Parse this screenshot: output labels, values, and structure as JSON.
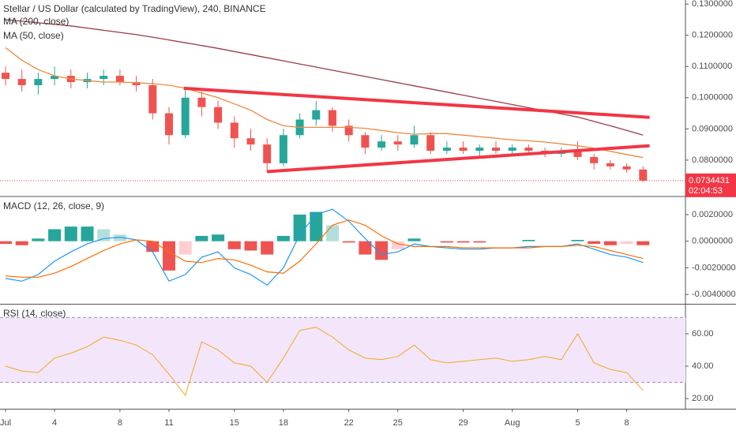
{
  "chart_data": [
    {
      "type": "candlestick",
      "title": "Stellar / US Dollar (calculated by TradingView), 240, BINANCE",
      "categories": [
        "Jul",
        null,
        null,
        "4",
        null,
        null,
        null,
        "8",
        null,
        null,
        "11",
        null,
        null,
        null,
        "15",
        null,
        null,
        "18",
        null,
        null,
        null,
        "22",
        null,
        null,
        "25",
        null,
        null,
        null,
        "29",
        null,
        null,
        "Aug",
        null,
        null,
        null,
        "5",
        null,
        null,
        "8",
        null
      ],
      "open": [
        0.108,
        0.106,
        0.104,
        0.106,
        0.107,
        0.105,
        0.106,
        0.107,
        0.105,
        0.104,
        0.095,
        0.088,
        0.1,
        0.097,
        0.092,
        0.087,
        0.085,
        0.079,
        0.088,
        0.093,
        0.096,
        0.091,
        0.088,
        0.084,
        0.086,
        0.085,
        0.088,
        0.083,
        0.084,
        0.083,
        0.084,
        0.083,
        0.084,
        0.083,
        0.082,
        0.083,
        0.081,
        0.079,
        0.078,
        0.077
      ],
      "high": [
        0.11,
        0.109,
        0.108,
        0.11,
        0.109,
        0.108,
        0.109,
        0.109,
        0.107,
        0.106,
        0.097,
        0.103,
        0.102,
        0.099,
        0.094,
        0.09,
        0.087,
        0.09,
        0.095,
        0.099,
        0.097,
        0.093,
        0.089,
        0.088,
        0.088,
        0.091,
        0.089,
        0.086,
        0.086,
        0.085,
        0.086,
        0.085,
        0.085,
        0.084,
        0.084,
        0.086,
        0.082,
        0.08,
        0.079,
        0.078
      ],
      "low": [
        0.104,
        0.102,
        0.101,
        0.104,
        0.103,
        0.103,
        0.104,
        0.104,
        0.102,
        0.093,
        0.085,
        0.087,
        0.094,
        0.09,
        0.084,
        0.083,
        0.076,
        0.078,
        0.087,
        0.091,
        0.089,
        0.086,
        0.082,
        0.083,
        0.083,
        0.084,
        0.082,
        0.082,
        0.082,
        0.081,
        0.082,
        0.082,
        0.082,
        0.081,
        0.081,
        0.08,
        0.077,
        0.077,
        0.076,
        0.073
      ],
      "close": [
        0.106,
        0.104,
        0.106,
        0.107,
        0.105,
        0.106,
        0.107,
        0.105,
        0.104,
        0.095,
        0.088,
        0.1,
        0.097,
        0.092,
        0.087,
        0.085,
        0.079,
        0.088,
        0.093,
        0.096,
        0.091,
        0.088,
        0.084,
        0.086,
        0.085,
        0.088,
        0.083,
        0.084,
        0.083,
        0.084,
        0.083,
        0.084,
        0.083,
        0.082,
        0.083,
        0.081,
        0.079,
        0.078,
        0.077,
        0.0734431
      ],
      "up_color": "#26a69a",
      "down_color": "#ef5350",
      "series": [
        {
          "name": "MA (200, close)",
          "color": "#9b3b4a",
          "values": [
            0.125,
            0.1245,
            0.124,
            0.1235,
            0.123,
            0.1223,
            0.1216,
            0.1209,
            0.1202,
            0.1194,
            0.1185,
            0.1176,
            0.1167,
            0.1158,
            0.1148,
            0.1138,
            0.1128,
            0.1118,
            0.1108,
            0.1098,
            0.1088,
            0.1078,
            0.1068,
            0.1058,
            0.1048,
            0.1038,
            0.1028,
            0.1018,
            0.1008,
            0.0998,
            0.0988,
            0.0978,
            0.0968,
            0.0958,
            0.0948,
            0.0938,
            0.0924,
            0.091,
            0.0895,
            0.088
          ]
        },
        {
          "name": "MA (50, close)",
          "color": "#f0883e",
          "values": [
            0.116,
            0.112,
            0.109,
            0.107,
            0.106,
            0.1055,
            0.105,
            0.105,
            0.1048,
            0.1045,
            0.104,
            0.103,
            0.1015,
            0.1,
            0.098,
            0.096,
            0.093,
            0.091,
            0.0905,
            0.0905,
            0.0905,
            0.0905,
            0.0902,
            0.0895,
            0.0888,
            0.0883,
            0.0885,
            0.0885,
            0.088,
            0.0875,
            0.087,
            0.0865,
            0.0862,
            0.0858,
            0.0852,
            0.0846,
            0.0838,
            0.0828,
            0.0818,
            0.0808
          ]
        }
      ],
      "trendlines": [
        {
          "color": "#f23645",
          "x": [
            10.9,
            39.4
          ],
          "y": [
            0.103,
            0.0937
          ]
        },
        {
          "color": "#f23645",
          "x": [
            16.0,
            39.4
          ],
          "y": [
            0.0763,
            0.0846
          ]
        }
      ],
      "countdown": "02:04:53",
      "last_color": "#f23645",
      "ylim": [
        0.0686,
        0.1313
      ],
      "yticks": [
        {
          "value": 0.13,
          "label": "0.1300000"
        },
        {
          "value": 0.12,
          "label": "0.1200000"
        },
        {
          "value": 0.11,
          "label": "0.1100000"
        },
        {
          "value": 0.1,
          "label": "0.1000000"
        },
        {
          "value": 0.09,
          "label": "0.0900000"
        },
        {
          "value": 0.08,
          "label": "0.0800000"
        }
      ]
    },
    {
      "type": "macd",
      "title": "MACD (12, 26, close, 9)",
      "histogram": {
        "values": [
          -0.0002,
          -0.0003,
          0.0002,
          0.0009,
          0.0011,
          0.0011,
          0.0009,
          0.0005,
          0,
          -0.0008,
          -0.0022,
          -0.001,
          0.0004,
          0.0005,
          -0.0006,
          -0.0007,
          -0.001,
          0.0004,
          0.002,
          0.0022,
          0.0012,
          -0.0001,
          -0.001,
          -0.0014,
          -0.0006,
          0.0002,
          0,
          -0.0001,
          -0.0001,
          -0.0001,
          0,
          0,
          0.0001,
          0,
          0,
          0.0001,
          -0.0002,
          -0.0003,
          -0.0002,
          -0.0003
        ],
        "colors": [
          "#26a69a",
          "#b2dfdb",
          "#ef5350",
          "#ffcdd2"
        ]
      },
      "lines": [
        {
          "color": "#2196f3",
          "values": [
            -0.0028,
            -0.003,
            -0.0025,
            -0.0015,
            -0.0008,
            -0.0002,
            0.0002,
            0.0003,
            0.0001,
            -0.0008,
            -0.003,
            -0.0025,
            -0.0012,
            -0.0008,
            -0.002,
            -0.0025,
            -0.0033,
            -0.002,
            0.0005,
            0.002,
            0.0024,
            0.0015,
            0.0002,
            -0.001,
            -0.0008,
            -0.0002,
            -0.0004,
            -0.0005,
            -0.0006,
            -0.0006,
            -0.0005,
            -0.0005,
            -0.0004,
            -0.0004,
            -0.0004,
            -0.0002,
            -0.0006,
            -0.001,
            -0.0012,
            -0.0016
          ]
        },
        {
          "color": "#ff6d00",
          "values": [
            -0.0026,
            -0.0027,
            -0.0027,
            -0.0024,
            -0.0019,
            -0.0013,
            -0.0007,
            -0.0002,
            0.0001,
            0,
            -0.0008,
            -0.0015,
            -0.0016,
            -0.0013,
            -0.0014,
            -0.0018,
            -0.0023,
            -0.0024,
            -0.0015,
            -0.0002,
            0.0012,
            0.0016,
            0.0012,
            0.0004,
            -0.0002,
            -0.0004,
            -0.0004,
            -0.0004,
            -0.0005,
            -0.0005,
            -0.0005,
            -0.0005,
            -0.0005,
            -0.0004,
            -0.0004,
            -0.0003,
            -0.0004,
            -0.0007,
            -0.001,
            -0.0013
          ]
        }
      ],
      "ylim": [
        -0.0047,
        0.0033
      ],
      "yticks": [
        {
          "value": 0.002,
          "label": "0.0020000"
        },
        {
          "value": 0,
          "label": "0.0000000"
        },
        {
          "value": -0.002,
          "label": "-0.0020000"
        },
        {
          "value": -0.004,
          "label": "-0.0040000"
        }
      ]
    },
    {
      "type": "line",
      "title": "RSI (14, close)",
      "color": "#f5a623",
      "values": [
        40,
        37,
        36,
        45,
        48,
        52,
        58,
        56,
        53,
        47,
        35,
        22,
        55,
        50,
        42,
        40,
        30,
        45,
        62,
        64,
        58,
        50,
        45,
        44,
        46,
        53,
        44,
        42,
        43,
        44,
        45,
        43,
        44,
        46,
        44,
        60,
        42,
        38,
        36,
        25
      ],
      "band": [
        30,
        70
      ],
      "band_color": "#f3e6fa",
      "ylim": [
        13.7,
        78
      ],
      "yticks": [
        {
          "value": 60,
          "label": "60.00"
        },
        {
          "value": 40,
          "label": "40.00"
        },
        {
          "value": 20,
          "label": "20.00"
        }
      ]
    }
  ]
}
